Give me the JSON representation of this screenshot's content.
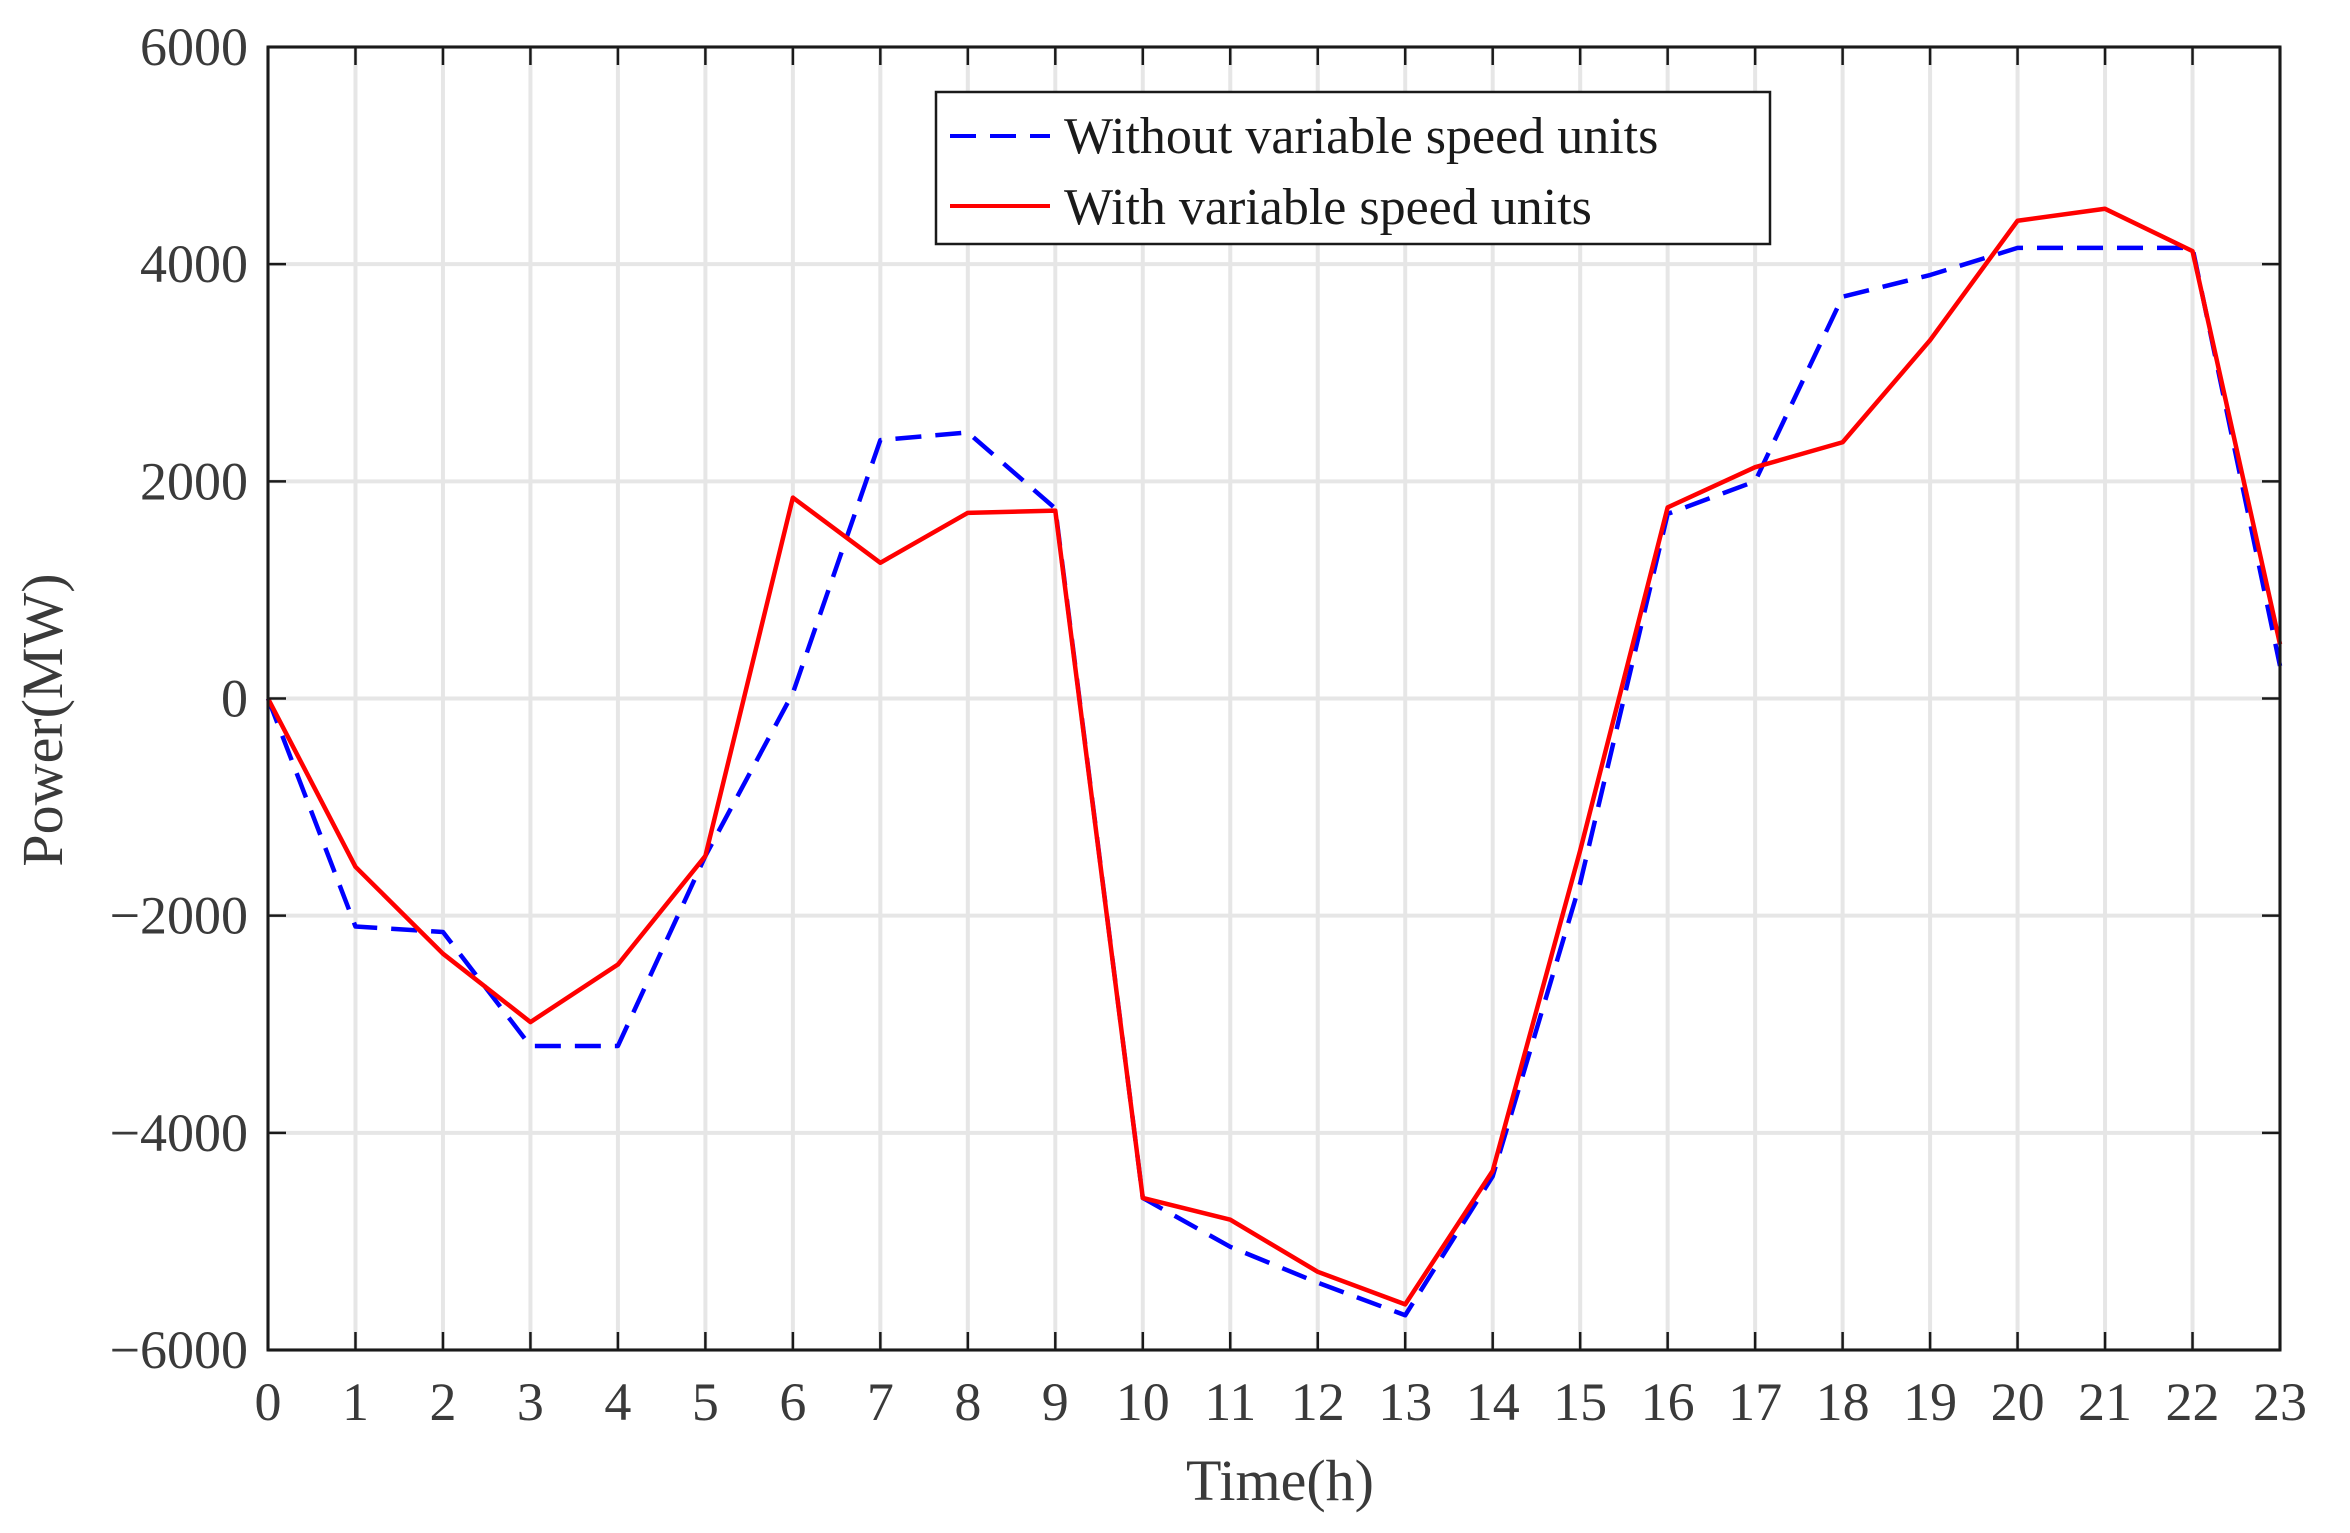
{
  "chart_data": {
    "type": "line",
    "title": "",
    "xlabel": "Time(h)",
    "ylabel": "Power(MW)",
    "xlim": [
      0,
      23
    ],
    "ylim": [
      -6000,
      6000
    ],
    "grid": true,
    "legend_position": "top-center",
    "x": [
      0,
      1,
      2,
      3,
      4,
      5,
      6,
      7,
      8,
      9,
      10,
      11,
      12,
      13,
      14,
      15,
      16,
      17,
      18,
      19,
      20,
      21,
      22,
      23
    ],
    "x_tick_labels": [
      "0",
      "1",
      "2",
      "3",
      "4",
      "5",
      "6",
      "7",
      "8",
      "9",
      "10",
      "11",
      "12",
      "13",
      "14",
      "15",
      "16",
      "17",
      "18",
      "19",
      "20",
      "21",
      "22",
      "23"
    ],
    "y_ticks": [
      -6000,
      -4000,
      -2000,
      0,
      2000,
      4000,
      6000
    ],
    "y_tick_labels": [
      "−6000",
      "−4000",
      "−2000",
      "0",
      "2000",
      "4000",
      "6000"
    ],
    "series": [
      {
        "name": "Without variable speed units",
        "color": "#0000ff",
        "style": "dashed",
        "values": [
          0,
          -2100,
          -2150,
          -3200,
          -3200,
          -1450,
          50,
          2380,
          2450,
          1750,
          -4600,
          -5050,
          -5380,
          -5680,
          -4400,
          -1700,
          1700,
          2000,
          3700,
          3900,
          4150,
          4150,
          4150,
          300
        ]
      },
      {
        "name": "With variable speed units",
        "color": "#ff0000",
        "style": "solid",
        "values": [
          0,
          -1550,
          -2350,
          -2980,
          -2450,
          -1450,
          1850,
          1250,
          1710,
          1730,
          -4600,
          -4800,
          -5280,
          -5580,
          -4350,
          -1400,
          1760,
          2130,
          2360,
          3300,
          4400,
          4510,
          4120,
          500
        ]
      }
    ]
  }
}
